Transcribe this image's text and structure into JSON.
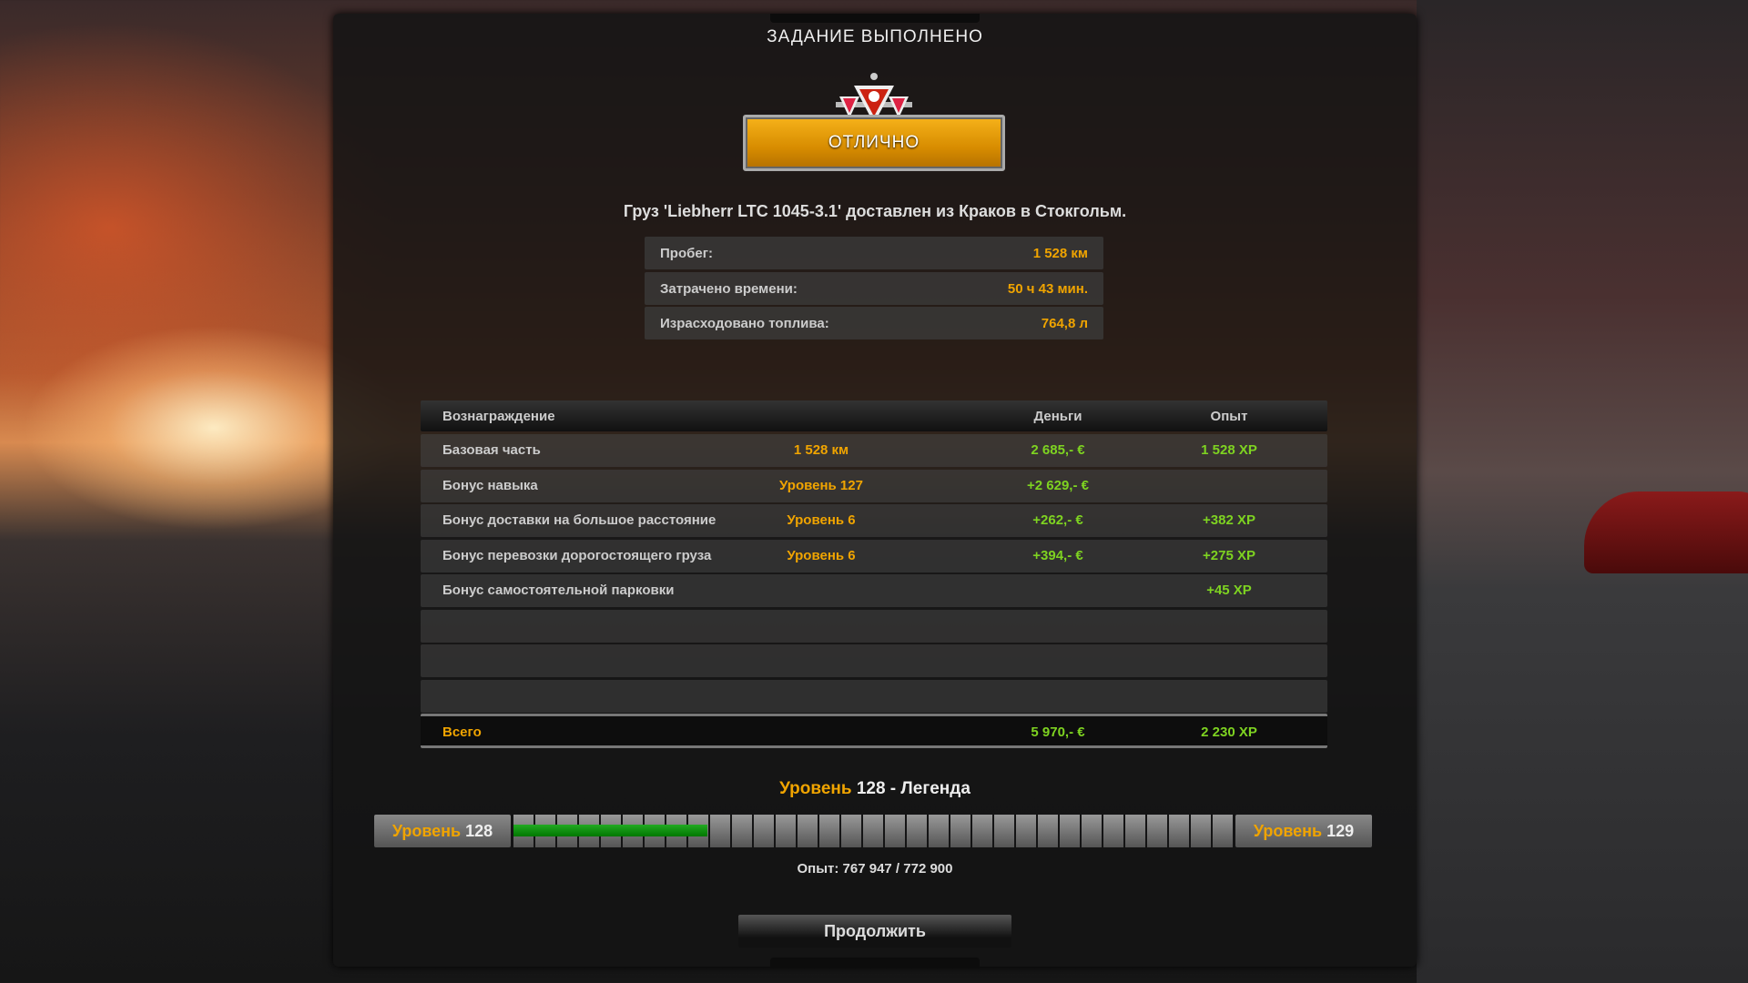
{
  "title": "ЗАДАНИЕ ВЫПОЛНЕНО",
  "rating": "ОТЛИЧНО",
  "cargo_line": "Груз 'Liebherr LTC 1045-3.1' доставлен из Краков в Стокгольм.",
  "stats": [
    {
      "label": "Пробег:",
      "value": "1 528 км"
    },
    {
      "label": "Затрачено времени:",
      "value": "50 ч 43 мин."
    },
    {
      "label": "Израсходовано топлива:",
      "value": "764,8 л"
    }
  ],
  "rewards": {
    "headers": [
      "Вознаграждение",
      "",
      "Деньги",
      "Опыт"
    ],
    "rows": [
      [
        "Базовая часть",
        "1 528 км",
        "2 685,- €",
        "1 528 XP"
      ],
      [
        "Бонус навыка",
        "Уровень 127",
        "+2 629,- €",
        ""
      ],
      [
        "Бонус доставки на большое расстояние",
        "Уровень 6",
        "+262,- €",
        "+382 XP"
      ],
      [
        "Бонус перевозки дорогостоящего груза",
        "Уровень 6",
        "+394,- €",
        "+275 XP"
      ],
      [
        "Бонус самостоятельной парковки",
        "",
        "",
        "+45 XP"
      ]
    ],
    "total": {
      "label": "Всего",
      "money": "5 970,- €",
      "xp": "2 230 XP"
    }
  },
  "level": {
    "word": "Уровень",
    "current": "128",
    "suffix": " - Легенда",
    "next": "129",
    "progress_fill": 0.27
  },
  "xp_text": "Опыт: 767 947 / 772 900",
  "continue_label": "Продолжить",
  "colors": {
    "accent": "#f0a400",
    "positive": "#7ed321",
    "progress": "#22aa22"
  }
}
